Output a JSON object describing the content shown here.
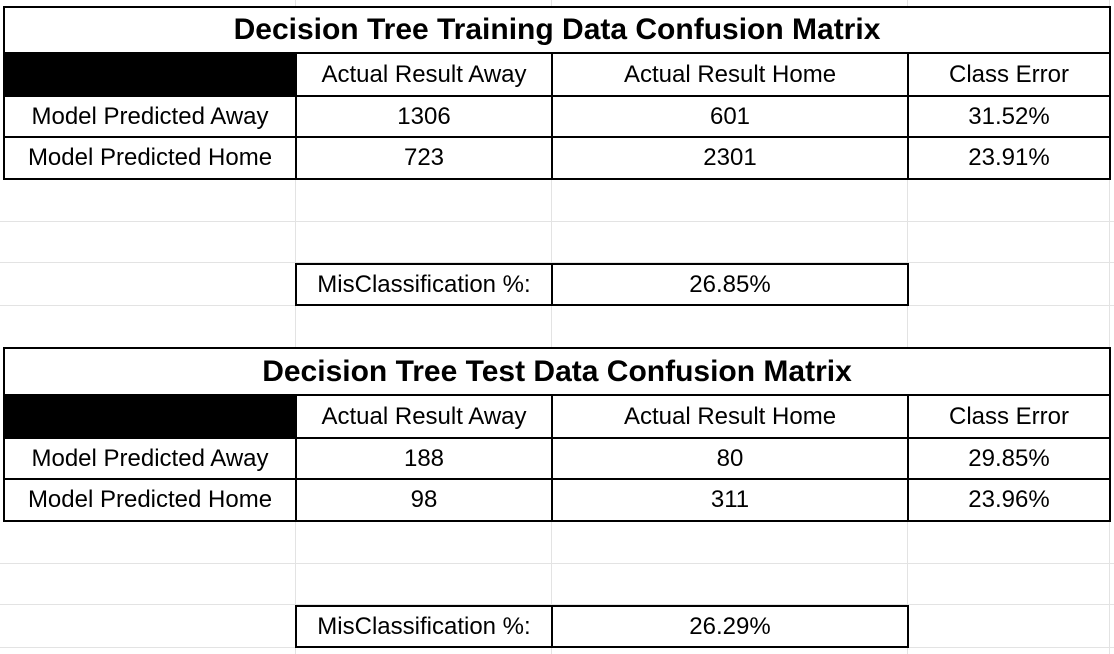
{
  "training": {
    "title": "Decision Tree Training Data Confusion Matrix",
    "headers": [
      "Actual Result Away",
      "Actual Result Home",
      "Class Error"
    ],
    "rows": [
      {
        "label": "Model Predicted Away",
        "away": "1306",
        "home": "601",
        "error": "31.52%"
      },
      {
        "label": "Model Predicted Home",
        "away": "723",
        "home": "2301",
        "error": "23.91%"
      }
    ],
    "misclassification_label": "MisClassification %:",
    "misclassification_value": "26.85%"
  },
  "test": {
    "title": "Decision Tree Test Data Confusion Matrix",
    "headers": [
      "Actual Result Away",
      "Actual Result Home",
      "Class Error"
    ],
    "rows": [
      {
        "label": "Model Predicted Away",
        "away": "188",
        "home": "80",
        "error": "29.85%"
      },
      {
        "label": "Model Predicted Home",
        "away": "98",
        "home": "311",
        "error": "23.96%"
      }
    ],
    "misclassification_label": "MisClassification %:",
    "misclassification_value": "26.29%"
  },
  "colors": {
    "border": "#000000",
    "header_fill": "#000000",
    "gridline": "#e3e3e3",
    "background": "#ffffff"
  }
}
